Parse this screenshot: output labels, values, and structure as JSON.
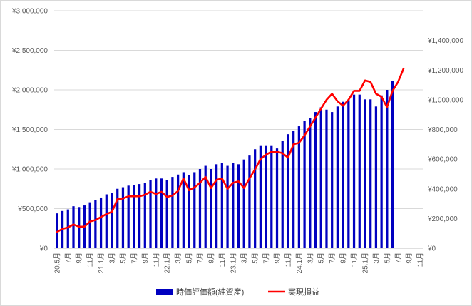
{
  "chart_data": {
    "type": "bar",
    "grid": true,
    "legend_position": "bottom",
    "categories": [
      "20.5月",
      "",
      "7月",
      "",
      "9月",
      "",
      "11月",
      "",
      "21.1月",
      "",
      "3月",
      "",
      "5月",
      "",
      "7月",
      "",
      "9月",
      "",
      "11月",
      "",
      "22.1月",
      "",
      "3月",
      "",
      "5月",
      "",
      "7月",
      "",
      "9月",
      "",
      "11月",
      "",
      "23.1月",
      "",
      "3月",
      "",
      "5月",
      "",
      "7月",
      "",
      "9月",
      "",
      "11月",
      "",
      "24.1月",
      "",
      "3月",
      "",
      "5月",
      "",
      "7月",
      "",
      "9月",
      "",
      "11月",
      "",
      "25.1月",
      "",
      "3月",
      "",
      "5月",
      "",
      "7月",
      "",
      "9月",
      "",
      "11月"
    ],
    "y_left": {
      "ylim": [
        0,
        3000000
      ],
      "ticks": [
        0,
        500000,
        1000000,
        1500000,
        2000000,
        2500000,
        3000000
      ],
      "tick_labels": [
        "¥0",
        "¥500,000",
        "¥1,000,000",
        "¥1,500,000",
        "¥2,000,000",
        "¥2,500,000",
        "¥3,000,000"
      ]
    },
    "y_right": {
      "ylim": [
        0,
        1600000
      ],
      "ticks": [
        0,
        200000,
        400000,
        600000,
        800000,
        1000000,
        1200000,
        1400000
      ],
      "tick_labels": [
        "¥0",
        "¥200,000",
        "¥400,000",
        "¥600,000",
        "¥800,000",
        "¥1,000,000",
        "¥1,200,000",
        "¥1,400,000"
      ]
    },
    "series": [
      {
        "name": "時価評価額(純資産)",
        "type": "bar",
        "axis": "left",
        "color": "#0000c0",
        "values": [
          440000,
          470000,
          490000,
          530000,
          520000,
          540000,
          580000,
          610000,
          640000,
          680000,
          700000,
          750000,
          770000,
          790000,
          800000,
          810000,
          820000,
          860000,
          880000,
          880000,
          860000,
          900000,
          930000,
          960000,
          920000,
          960000,
          1000000,
          1040000,
          1000000,
          1060000,
          1080000,
          1040000,
          1080000,
          1060000,
          1120000,
          1170000,
          1250000,
          1300000,
          1300000,
          1300000,
          1260000,
          1360000,
          1440000,
          1480000,
          1540000,
          1610000,
          1640000,
          1720000,
          1780000,
          1750000,
          1720000,
          1790000,
          1850000,
          1870000,
          1940000,
          1940000,
          1880000,
          1880000,
          1790000,
          1930000,
          2000000,
          2110000,
          null,
          null,
          null,
          null,
          null
        ]
      },
      {
        "name": "実現損益",
        "type": "line",
        "axis": "right",
        "color": "#ff0000",
        "values": [
          110000,
          130000,
          140000,
          160000,
          145000,
          145000,
          180000,
          190000,
          210000,
          230000,
          245000,
          330000,
          335000,
          350000,
          350000,
          350000,
          360000,
          380000,
          365000,
          380000,
          345000,
          355000,
          385000,
          470000,
          390000,
          410000,
          440000,
          480000,
          405000,
          460000,
          470000,
          400000,
          440000,
          450000,
          405000,
          470000,
          530000,
          600000,
          630000,
          650000,
          650000,
          640000,
          610000,
          700000,
          710000,
          760000,
          820000,
          880000,
          940000,
          1000000,
          1040000,
          990000,
          960000,
          1000000,
          1060000,
          1060000,
          1130000,
          1120000,
          1040000,
          1020000,
          950000,
          1060000,
          1120000,
          1210000,
          null,
          null,
          null
        ]
      }
    ]
  }
}
